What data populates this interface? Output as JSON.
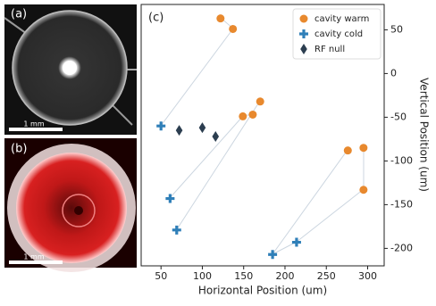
{
  "panels": {
    "a": {
      "label": "(a)",
      "scale_label": "1 mm"
    },
    "b": {
      "label": "(b)",
      "scale_label": "1 mm"
    }
  },
  "chart_data": {
    "type": "scatter",
    "label": "(c)",
    "x_label": "Horizontal Position (um)",
    "y_label": "Vertical Position (um)",
    "xlim": [
      26,
      320
    ],
    "ylim": [
      -220,
      79
    ],
    "xticks": [
      50,
      100,
      150,
      200,
      250,
      300
    ],
    "yticks": [
      50,
      0,
      -50,
      -100,
      -150,
      -200
    ],
    "legend": "upper right",
    "series": [
      {
        "name": "cavity warm",
        "color": "#e8892e",
        "marker": "circle",
        "x": [
          122,
          137,
          170,
          161,
          149,
          276,
          295,
          295
        ],
        "values": [
          63,
          51,
          -32,
          -47,
          -49,
          -88,
          -85,
          -133
        ]
      },
      {
        "name": "cavity cold",
        "color": "#2f7fb8",
        "marker": "plus",
        "x": [
          50,
          61,
          69,
          185,
          214
        ],
        "values": [
          -60,
          -143,
          -179,
          -207,
          -193
        ]
      },
      {
        "name": "RF null",
        "color": "#2c3e50",
        "marker": "diamond",
        "x": [
          72,
          100,
          116
        ],
        "values": [
          -65,
          -62,
          -72
        ]
      }
    ]
  }
}
